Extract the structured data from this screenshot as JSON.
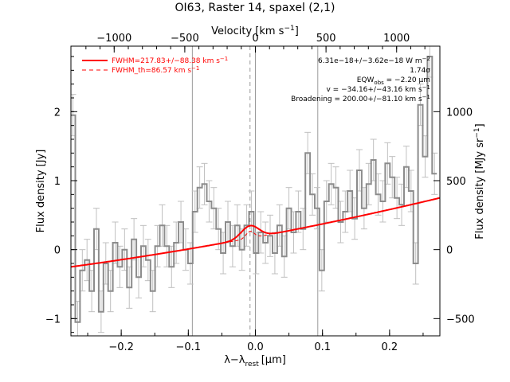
{
  "chart_data": {
    "type": "line",
    "title": "OI63, Raster 14, spaxel (2,1)",
    "xlabel": "λ−λ",
    "xlabel_sub": "rest",
    "xlabel_unit": "[μm]",
    "ylabel": "Flux density [Jy]",
    "y2label": "Flux density [MJy sr",
    "y2label_sup": "−1",
    "x2label": "Velocity [km s",
    "x2label_sup": "−1",
    "x2label_tail": "]",
    "xlim": [
      -0.275,
      0.275
    ],
    "ylim": [
      -1.25,
      2.95
    ],
    "x_ticks": [
      -0.2,
      -0.1,
      0.0,
      0.1,
      0.2
    ],
    "x_tick_labels": [
      "−0.2",
      "−0.1",
      "0.0",
      "0.1",
      "0.2"
    ],
    "y_ticks": [
      -1,
      0,
      1,
      2
    ],
    "y_tick_labels": [
      "−1",
      "0",
      "1",
      "2"
    ],
    "velocity_ticks": [
      -1000,
      -500,
      0,
      500,
      1000
    ],
    "velocity_tick_labels": [
      "−1000",
      "−500",
      "0",
      "500",
      "1000"
    ],
    "velocity_per_micron": 4750,
    "y2_ticks": [
      -500,
      0,
      500,
      1000
    ],
    "y2_tick_labels": [
      "−500",
      "0",
      "500",
      "1000"
    ],
    "y2_per_jy": 0.00467,
    "vertical_lines": [
      -0.094,
      0.0,
      0.093
    ],
    "rest_line": -0.008,
    "legend": [
      {
        "label": "FWHM=217.83+/−88.38 km s",
        "sup": "−1",
        "style": "solid"
      },
      {
        "label": "FWHM_th=86.57 km s",
        "sup": "−1",
        "style": "dashed"
      }
    ],
    "annotations": [
      {
        "text": "6.31e−18+/−3.62e−18 W m",
        "sup": "−2"
      },
      {
        "text": "1.74σ"
      },
      {
        "text": "EQW",
        "sub": "obs",
        "tail": " = −2.20 μm"
      },
      {
        "text": "v = −34.16+/−43.16 km s",
        "sup": "−1"
      },
      {
        "text": "Broadening = 200.00+/−81.10 km s",
        "sup": "−1"
      }
    ],
    "series": [
      {
        "style": "step",
        "color": "#8c8c8c",
        "x": [
          -0.272,
          -0.265,
          -0.258,
          -0.251,
          -0.244,
          -0.237,
          -0.23,
          -0.223,
          -0.216,
          -0.209,
          -0.202,
          -0.195,
          -0.188,
          -0.181,
          -0.174,
          -0.167,
          -0.16,
          -0.153,
          -0.146,
          -0.139,
          -0.132,
          -0.125,
          -0.118,
          -0.111,
          -0.104,
          -0.097,
          -0.09,
          -0.083,
          -0.076,
          -0.069,
          -0.062,
          -0.055,
          -0.048,
          -0.041,
          -0.034,
          -0.027,
          -0.02,
          -0.013,
          -0.006,
          0.001,
          0.008,
          0.015,
          0.022,
          0.029,
          0.036,
          0.043,
          0.05,
          0.057,
          0.064,
          0.071,
          0.078,
          0.085,
          0.092,
          0.099,
          0.106,
          0.113,
          0.12,
          0.127,
          0.134,
          0.141,
          0.148,
          0.155,
          0.162,
          0.169,
          0.176,
          0.183,
          0.19,
          0.197,
          0.204,
          0.211,
          0.218,
          0.225,
          0.232,
          0.239,
          0.246,
          0.253,
          0.26,
          0.267
        ],
        "y": [
          1.95,
          -1.05,
          -0.3,
          -0.15,
          -0.6,
          0.3,
          -0.9,
          -0.2,
          -0.6,
          0.1,
          -0.25,
          0.0,
          -0.55,
          0.15,
          -0.4,
          0.05,
          -0.15,
          -0.6,
          0.05,
          0.35,
          0.05,
          -0.25,
          0.1,
          0.4,
          0.0,
          -0.2,
          0.55,
          0.9,
          0.95,
          0.7,
          0.6,
          0.3,
          -0.05,
          0.4,
          0.05,
          0.35,
          0.0,
          0.35,
          0.55,
          -0.05,
          0.25,
          0.1,
          0.2,
          -0.05,
          0.35,
          -0.1,
          0.6,
          0.25,
          0.55,
          0.3,
          1.4,
          0.8,
          0.6,
          -0.3,
          0.7,
          0.95,
          0.9,
          0.4,
          0.55,
          0.85,
          0.45,
          1.15,
          0.6,
          0.95,
          1.3,
          0.8,
          0.7,
          1.25,
          1.05,
          0.75,
          0.65,
          1.2,
          0.85,
          -0.2,
          2.1,
          1.35,
          2.8,
          1.1
        ],
        "err": [
          0.3,
          0.3,
          0.3,
          0.3,
          0.3,
          0.3,
          0.3,
          0.3,
          0.3,
          0.3,
          0.3,
          0.3,
          0.3,
          0.3,
          0.3,
          0.3,
          0.3,
          0.3,
          0.3,
          0.3,
          0.3,
          0.3,
          0.3,
          0.3,
          0.3,
          0.3,
          0.3,
          0.3,
          0.3,
          0.3,
          0.3,
          0.3,
          0.3,
          0.3,
          0.3,
          0.3,
          0.3,
          0.3,
          0.3,
          0.3,
          0.3,
          0.3,
          0.3,
          0.3,
          0.3,
          0.3,
          0.3,
          0.3,
          0.3,
          0.3,
          0.3,
          0.3,
          0.3,
          0.3,
          0.3,
          0.3,
          0.3,
          0.3,
          0.3,
          0.3,
          0.3,
          0.3,
          0.3,
          0.3,
          0.3,
          0.3,
          0.3,
          0.3,
          0.3,
          0.3,
          0.3,
          0.3,
          0.3,
          0.3,
          0.3,
          0.3,
          0.3,
          0.3
        ]
      },
      {
        "style": "fit",
        "color": "#ff0000",
        "baseline": {
          "x0": -0.275,
          "y0": -0.25,
          "x1": 0.275,
          "y1": 0.75,
          "curvature": 0.55
        },
        "gauss": {
          "center": -0.008,
          "amp": 0.18,
          "sigma": 0.013
        }
      },
      {
        "style": "thermal",
        "color": "#ff0000",
        "gauss": {
          "center": -0.008,
          "amp": 0.1,
          "sigma": 0.006
        }
      }
    ]
  }
}
